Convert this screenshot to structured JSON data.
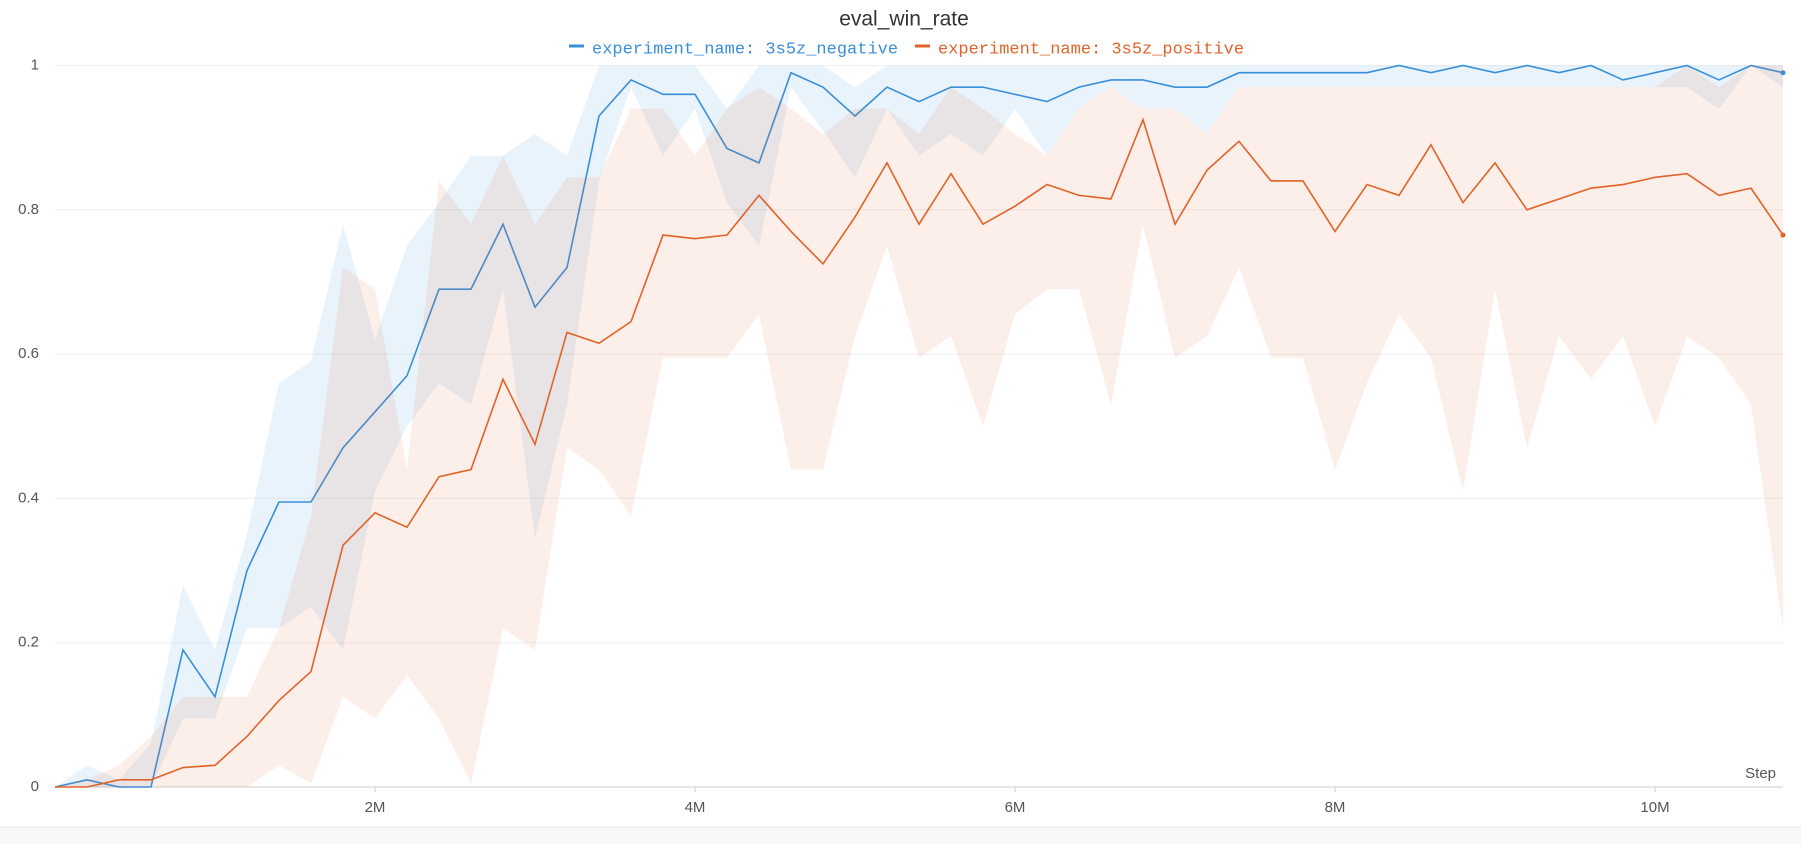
{
  "chart_data": {
    "type": "line",
    "title": "eval_win_rate",
    "x_label": "Step",
    "x": [
      0,
      200000,
      400000,
      600000,
      800000,
      1000000,
      1200000,
      1400000,
      1600000,
      1800000,
      2000000,
      2200000,
      2400000,
      2600000,
      2800000,
      3000000,
      3200000,
      3400000,
      3600000,
      3800000,
      4000000,
      4200000,
      4400000,
      4600000,
      4800000,
      5000000,
      5200000,
      5400000,
      5600000,
      5800000,
      6000000,
      6200000,
      6400000,
      6600000,
      6800000,
      7000000,
      7200000,
      7400000,
      7600000,
      7800000,
      8000000,
      8200000,
      8400000,
      8600000,
      8800000,
      9000000,
      9200000,
      9400000,
      9600000,
      9800000,
      10000000,
      10200000,
      10400000,
      10600000,
      10800000
    ],
    "xlim": [
      0,
      10800000
    ],
    "xticks": [
      {
        "value": 2000000,
        "label": "2M"
      },
      {
        "value": 4000000,
        "label": "4M"
      },
      {
        "value": 6000000,
        "label": "6M"
      },
      {
        "value": 8000000,
        "label": "8M"
      },
      {
        "value": 10000000,
        "label": "10M"
      }
    ],
    "ylim": [
      0,
      1
    ],
    "yticks": [
      0,
      0.2,
      0.4,
      0.6,
      0.8,
      1
    ],
    "grid": true,
    "legend": "top",
    "series": [
      {
        "name": "experiment_name: 3s5z_negative",
        "color": "#3a8fd9",
        "values": [
          0,
          0.01,
          0,
          0,
          0.19,
          0.125,
          0.3,
          0.395,
          0.395,
          0.47,
          0.52,
          0.57,
          0.69,
          0.69,
          0.78,
          0.665,
          0.72,
          0.93,
          0.98,
          0.96,
          0.96,
          0.885,
          0.865,
          0.99,
          0.97,
          0.93,
          0.97,
          0.95,
          0.97,
          0.97,
          0.96,
          0.95,
          0.97,
          0.98,
          0.98,
          0.97,
          0.97,
          0.99,
          0.99,
          0.99,
          0.99,
          0.99,
          1,
          0.99,
          1,
          0.99,
          1,
          0.99,
          1,
          0.98,
          0.99,
          1,
          0.98,
          1,
          0.99
        ],
        "upper": [
          0,
          0.03,
          0.01,
          0.06,
          0.28,
          0.19,
          0.35,
          0.56,
          0.59,
          0.78,
          0.62,
          0.75,
          0.81,
          0.875,
          0.875,
          0.905,
          0.875,
          1,
          1,
          1,
          1,
          0.94,
          1,
          1,
          1,
          0.97,
          1,
          1,
          1,
          1,
          1,
          1,
          1,
          1,
          1,
          1,
          1,
          1,
          1,
          1,
          1,
          1,
          1,
          1,
          1,
          1,
          1,
          1,
          1,
          1,
          1,
          1,
          1,
          1,
          1
        ],
        "lower": [
          0,
          0,
          0,
          0,
          0.095,
          0.095,
          0.22,
          0.22,
          0.25,
          0.19,
          0.41,
          0.5,
          0.56,
          0.53,
          0.69,
          0.345,
          0.53,
          0.84,
          0.97,
          0.875,
          0.94,
          0.81,
          0.75,
          0.97,
          0.91,
          0.845,
          0.94,
          0.875,
          0.905,
          0.875,
          0.94,
          0.875,
          0.94,
          0.97,
          0.94,
          0.94,
          0.905,
          0.97,
          0.97,
          0.97,
          0.97,
          0.97,
          0.97,
          0.97,
          0.97,
          0.97,
          0.97,
          0.97,
          0.97,
          0.97,
          0.97,
          0.97,
          0.94,
          1,
          0.97
        ]
      },
      {
        "name": "experiment_name: 3s5z_positive",
        "color": "#e0642a",
        "values": [
          0,
          0,
          0.01,
          0.01,
          0.027,
          0.03,
          0.07,
          0.12,
          0.16,
          0.335,
          0.38,
          0.36,
          0.43,
          0.44,
          0.565,
          0.475,
          0.63,
          0.615,
          0.645,
          0.765,
          0.76,
          0.765,
          0.82,
          0.77,
          0.725,
          0.79,
          0.865,
          0.78,
          0.85,
          0.78,
          0.805,
          0.835,
          0.82,
          0.815,
          0.925,
          0.78,
          0.855,
          0.895,
          0.84,
          0.84,
          0.77,
          0.835,
          0.82,
          0.89,
          0.81,
          0.865,
          0.8,
          0.815,
          0.83,
          0.835,
          0.845,
          0.85,
          0.82,
          0.83,
          0.765
        ],
        "upper": [
          0,
          0.01,
          0.03,
          0.07,
          0.125,
          0.125,
          0.125,
          0.22,
          0.375,
          0.72,
          0.69,
          0.44,
          0.84,
          0.78,
          0.875,
          0.78,
          0.845,
          0.845,
          0.94,
          0.94,
          0.875,
          0.94,
          0.97,
          0.94,
          0.905,
          0.94,
          0.94,
          0.905,
          0.97,
          0.94,
          0.905,
          0.875,
          0.94,
          0.97,
          0.94,
          0.94,
          0.905,
          0.97,
          0.97,
          0.97,
          0.97,
          0.97,
          0.97,
          0.97,
          0.97,
          0.97,
          0.97,
          0.97,
          0.97,
          0.97,
          0.97,
          1,
          0.97,
          1,
          1
        ],
        "lower": [
          0,
          0,
          0,
          0,
          0,
          0,
          0,
          0.03,
          0.005,
          0.125,
          0.095,
          0.155,
          0.095,
          0.005,
          0.22,
          0.19,
          0.47,
          0.44,
          0.375,
          0.595,
          0.595,
          0.595,
          0.655,
          0.44,
          0.44,
          0.625,
          0.75,
          0.595,
          0.625,
          0.5,
          0.655,
          0.69,
          0.69,
          0.53,
          0.78,
          0.595,
          0.625,
          0.72,
          0.595,
          0.595,
          0.44,
          0.56,
          0.655,
          0.595,
          0.41,
          0.69,
          0.47,
          0.625,
          0.565,
          0.625,
          0.5,
          0.625,
          0.595,
          0.53,
          0.22
        ]
      }
    ]
  }
}
